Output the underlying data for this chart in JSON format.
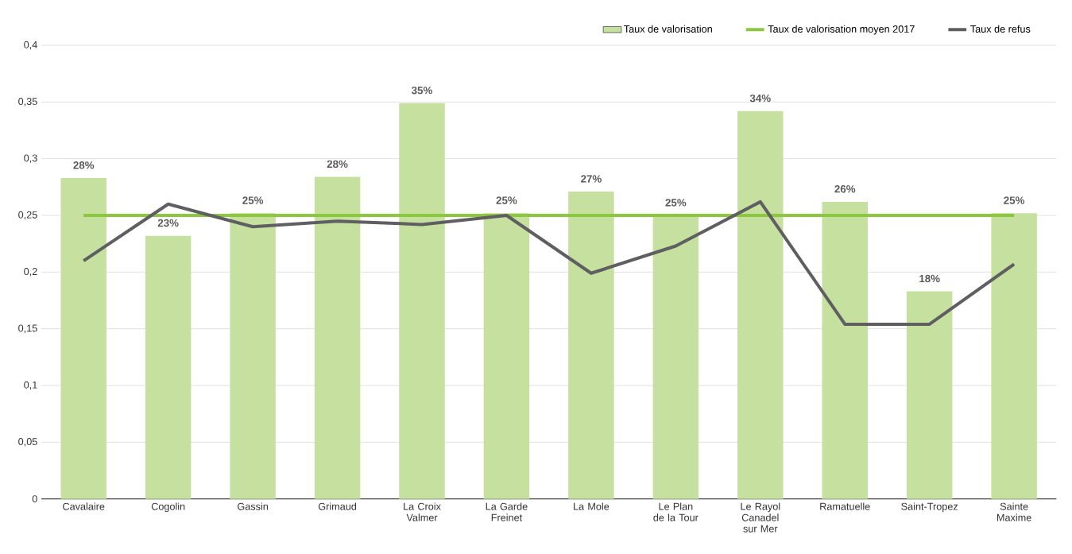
{
  "chart_data": {
    "type": "bar",
    "categories": [
      "Cavalaire",
      "Cogolin",
      "Gassin",
      "Grimaud",
      "La Croix Valmer",
      "La Garde Freinet",
      "La Mole",
      "Le Plan de la Tour",
      "Le Rayol Canadel sur Mer",
      "Ramatuelle",
      "Saint-Tropez",
      "Sainte Maxime"
    ],
    "series": [
      {
        "name": "Taux de valorisation",
        "color": "#c5e09f",
        "values": [
          0.283,
          0.232,
          0.252,
          0.284,
          0.349,
          0.252,
          0.271,
          0.25,
          0.342,
          0.262,
          0.183,
          0.252
        ],
        "value_labels": [
          "28%",
          "23%",
          "25%",
          "28%",
          "35%",
          "25%",
          "27%",
          "25%",
          "34%",
          "26%",
          "18%",
          "25%"
        ]
      },
      {
        "name": "Taux de valorisation moyen 2017",
        "type": "line",
        "color": "#8dc63f",
        "values": [
          0.25,
          0.25,
          0.25,
          0.25,
          0.25,
          0.25,
          0.25,
          0.25,
          0.25,
          0.25,
          0.25,
          0.25
        ]
      },
      {
        "name": "Taux de refus",
        "type": "line",
        "color": "#5f5f61",
        "values": [
          0.21,
          0.26,
          0.24,
          0.245,
          0.242,
          0.25,
          0.199,
          0.223,
          0.262,
          0.154,
          0.154,
          0.207
        ]
      }
    ],
    "ylim": [
      0,
      0.4
    ],
    "yticks": [
      0,
      {
        "value": 0.05,
        "label": "0,05"
      },
      {
        "value": 0.1,
        "label": "0,1"
      },
      {
        "value": 0.15,
        "label": "0,15"
      },
      {
        "value": 0.2,
        "label": "0,2"
      },
      {
        "value": 0.25,
        "label": "0,25"
      },
      {
        "value": 0.3,
        "label": "0,3"
      },
      {
        "value": 0.35,
        "label": "0,35"
      },
      {
        "value": 0.4,
        "label": "0,4"
      }
    ],
    "grid": "y",
    "legend": "top right"
  }
}
